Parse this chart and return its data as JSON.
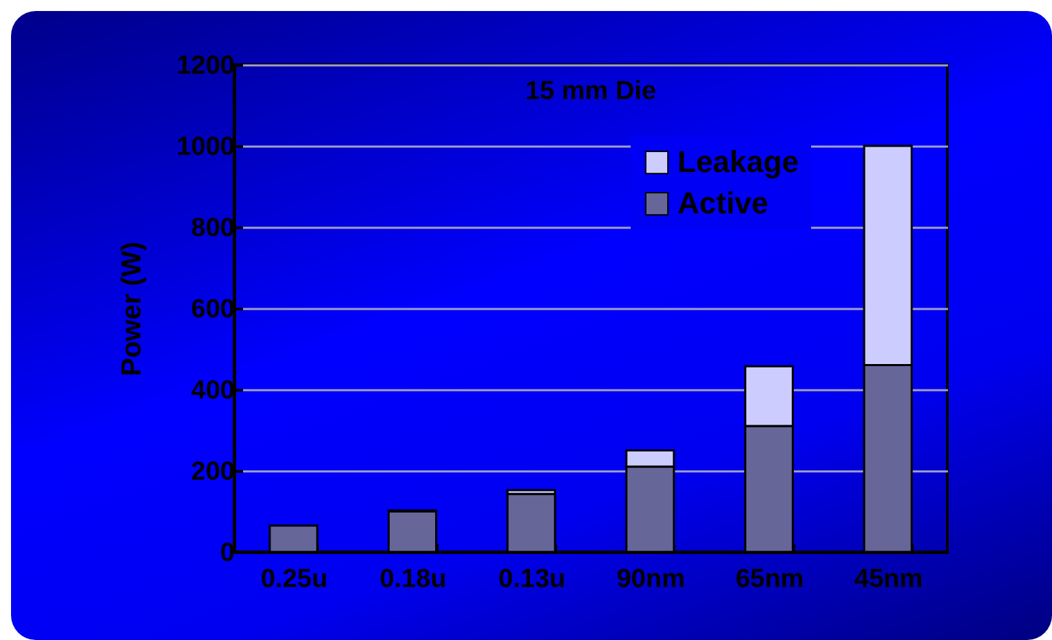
{
  "chart_data": {
    "type": "bar",
    "title": "15 mm Die",
    "ylabel": "Power (W)",
    "categories": [
      "0.25u",
      "0.18u",
      "0.13u",
      "90nm",
      "65nm",
      "45nm"
    ],
    "stacked": true,
    "series": [
      {
        "name": "Active",
        "color": "#666699",
        "values": [
          65,
          100,
          143,
          210,
          310,
          460
        ]
      },
      {
        "name": "Leakage",
        "color": "#ccccff",
        "values": [
          null,
          2,
          9,
          40,
          147,
          540
        ]
      }
    ],
    "ylim": [
      0,
      1200
    ],
    "yticks": [
      0,
      200,
      400,
      600,
      800,
      1000,
      1200
    ],
    "grid": "y",
    "legend": "top right"
  }
}
